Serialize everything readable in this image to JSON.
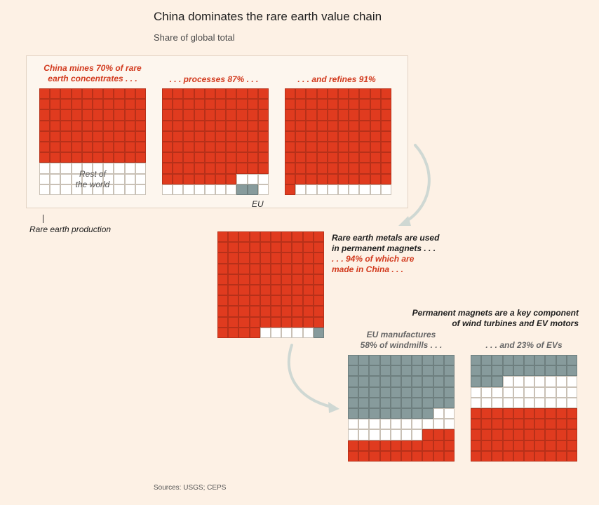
{
  "header": {
    "title": "China dominates the rare earth value chain",
    "subtitle": "Share of global total"
  },
  "colors": {
    "china": "#e03b1f",
    "eu": "#879b9c",
    "rest": "#ffffff",
    "grid_line": "#c9c1b6",
    "arrow": "#cfd8d3"
  },
  "panels": {
    "mining": {
      "caption_line1": "China mines 70% of rare",
      "caption_line2": "earth concentrates . . .",
      "rest_line1": "Rest of",
      "rest_line2": "the world"
    },
    "processing": {
      "caption": ". . . processes 87% . . .",
      "eu_label": "EU"
    },
    "refining": {
      "caption": ". . . and refines 91%"
    },
    "production_label": "Rare earth production",
    "magnets": {
      "caption_line1": "Rare earth metals are used",
      "caption_line2": "in permanent magnets . . .",
      "caption_line3": ". . . 94% of which are",
      "caption_line4": "made in China . . ."
    },
    "components": {
      "caption_line1": "Permanent magnets are a key component",
      "caption_line2": "of wind turbines and EV motors"
    },
    "windmills": {
      "caption_line1": "EU manufactures",
      "caption_line2": "58% of windmills . . ."
    },
    "evs": {
      "caption": ". . . and 23% of EVs"
    }
  },
  "chart_data": [
    {
      "type": "waffle",
      "title": "China mines 70% of rare earth concentrates",
      "grid": [
        10,
        10
      ],
      "series": [
        {
          "name": "China",
          "value": 70
        },
        {
          "name": "Rest of the world",
          "value": 30
        }
      ]
    },
    {
      "type": "waffle",
      "title": "processes 87%",
      "grid": [
        10,
        10
      ],
      "series": [
        {
          "name": "China",
          "value": 87
        },
        {
          "name": "Rest of the world",
          "value": 11
        },
        {
          "name": "EU",
          "value": 2
        }
      ]
    },
    {
      "type": "waffle",
      "title": "and refines 91%",
      "grid": [
        10,
        10
      ],
      "series": [
        {
          "name": "China",
          "value": 91
        },
        {
          "name": "Rest of the world",
          "value": 9
        }
      ]
    },
    {
      "type": "waffle",
      "title": "94% of permanent magnets made in China",
      "grid": [
        10,
        10
      ],
      "series": [
        {
          "name": "China",
          "value": 94
        },
        {
          "name": "Rest of the world",
          "value": 5
        },
        {
          "name": "EU",
          "value": 1
        }
      ]
    },
    {
      "type": "waffle",
      "title": "EU manufactures 58% of windmills",
      "grid": [
        10,
        10
      ],
      "series": [
        {
          "name": "EU",
          "value": 58
        },
        {
          "name": "Rest of the world",
          "value": 19
        },
        {
          "name": "China",
          "value": 23
        }
      ]
    },
    {
      "type": "waffle",
      "title": "and 23% of EVs",
      "grid": [
        10,
        10
      ],
      "series": [
        {
          "name": "EU",
          "value": 23
        },
        {
          "name": "Rest of the world",
          "value": 27
        },
        {
          "name": "China",
          "value": 50
        }
      ]
    }
  ],
  "footer": {
    "sources": "Sources: USGS; CEPS"
  }
}
